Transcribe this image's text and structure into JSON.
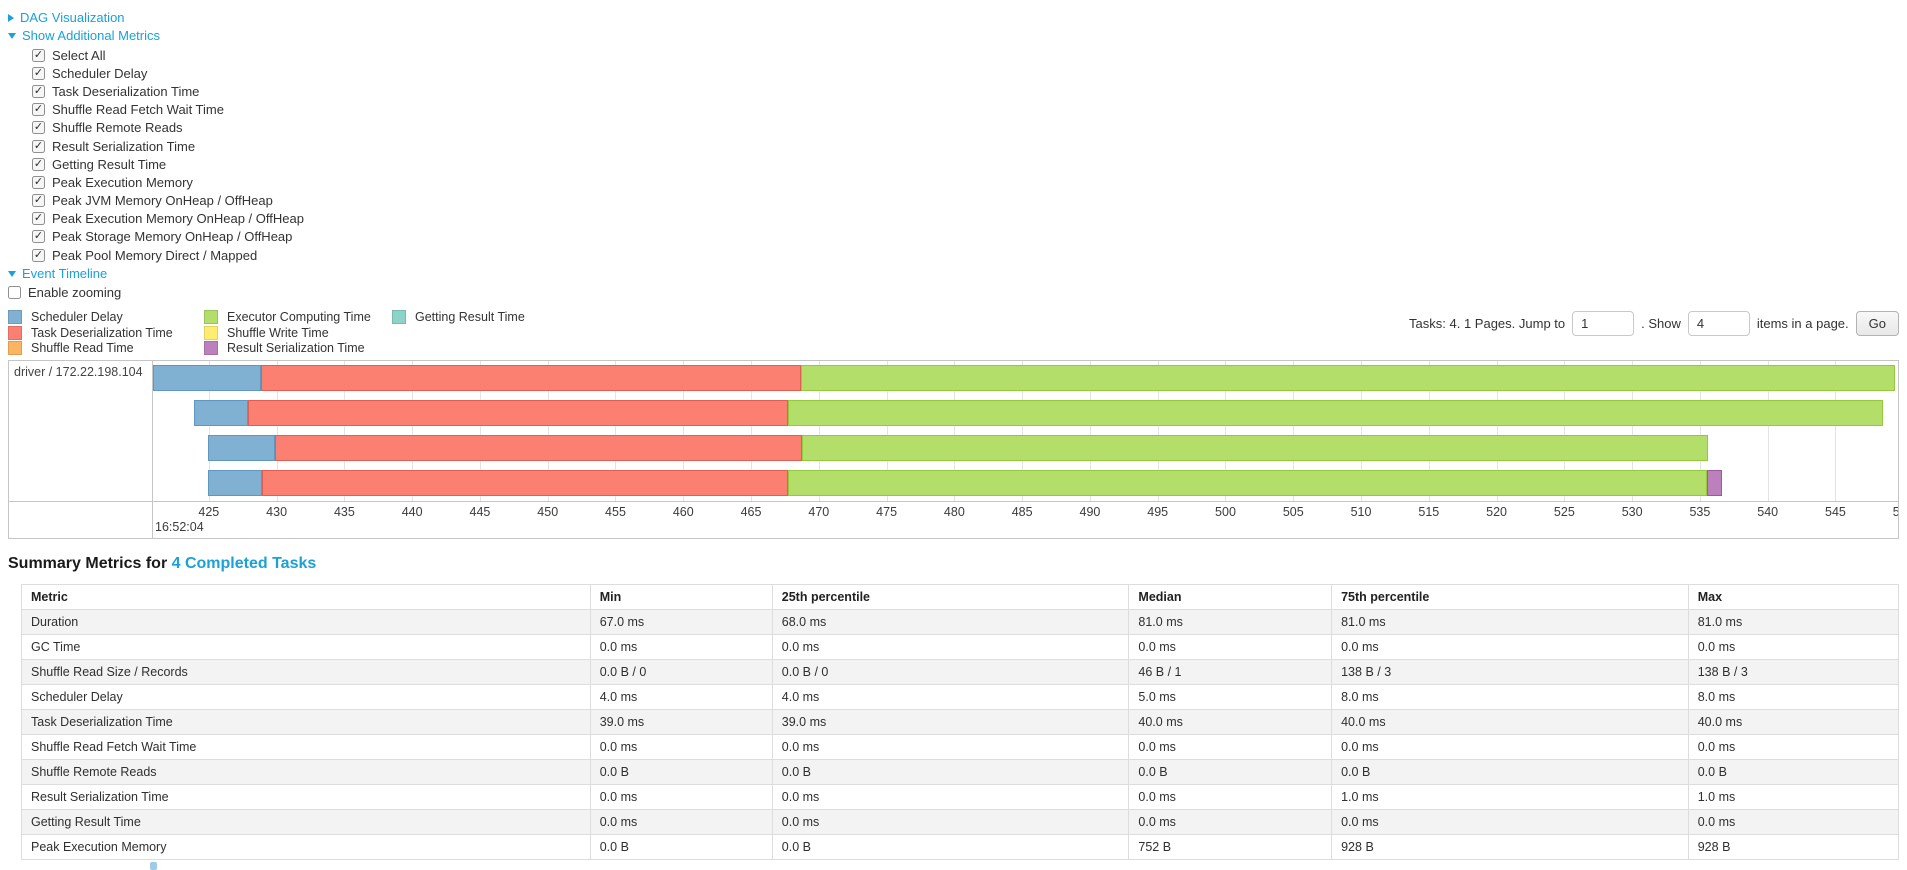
{
  "toggles": {
    "dag_label": "DAG Visualization",
    "metrics_label": "Show Additional Metrics",
    "timeline_label": "Event Timeline"
  },
  "additional_metrics": [
    "Select All",
    "Scheduler Delay",
    "Task Deserialization Time",
    "Shuffle Read Fetch Wait Time",
    "Shuffle Remote Reads",
    "Result Serialization Time",
    "Getting Result Time",
    "Peak Execution Memory",
    "Peak JVM Memory OnHeap / OffHeap",
    "Peak Execution Memory OnHeap / OffHeap",
    "Peak Storage Memory OnHeap / OffHeap",
    "Peak Pool Memory Direct / Mapped"
  ],
  "enable_zooming_label": "Enable zooming",
  "legend": {
    "columns": [
      [
        {
          "label": "Scheduler Delay",
          "color": "#80B1D3"
        },
        {
          "label": "Task Deserialization Time",
          "color": "#FB8072"
        },
        {
          "label": "Shuffle Read Time",
          "color": "#FDB462"
        }
      ],
      [
        {
          "label": "Executor Computing Time",
          "color": "#B3DE69"
        },
        {
          "label": "Shuffle Write Time",
          "color": "#FFED6F"
        },
        {
          "label": "Result Serialization Time",
          "color": "#BC80BD"
        }
      ],
      [
        {
          "label": "Getting Result Time",
          "color": "#8DD3C7"
        }
      ]
    ]
  },
  "pagination": {
    "info": "Tasks: 4. 1 Pages. Jump to",
    "jump_value": "1",
    "show_prefix": ". Show",
    "show_value": "4",
    "show_suffix": "items in a page.",
    "go_label": "Go"
  },
  "chart_data": {
    "type": "timeline",
    "group_label": "driver / 172.22.198.104",
    "x_axis": {
      "tick_start": 425,
      "tick_step": 5,
      "tick_count": 26,
      "first_tick_pct": 3.2,
      "step_pct": 3.884,
      "time_label": "16:52:04",
      "unit": "seconds"
    },
    "segment_colors": {
      "scheduler_delay": {
        "fill": "#80B1D3",
        "border": "#5E97C0"
      },
      "task_deserialization": {
        "fill": "#FB8072",
        "border": "#E05F52"
      },
      "shuffle_read": {
        "fill": "#FDB462",
        "border": "#E09A40"
      },
      "executor_computing": {
        "fill": "#B3DE69",
        "border": "#94C93D"
      },
      "shuffle_write": {
        "fill": "#FFED6F",
        "border": "#E0CC4E"
      },
      "result_serialization": {
        "fill": "#BC80BD",
        "border": "#9C5A9E"
      },
      "getting_result": {
        "fill": "#8DD3C7",
        "border": "#6BBAAC"
      }
    },
    "tasks": [
      {
        "segments": [
          {
            "metric": "scheduler_delay",
            "left_pct": 0.0,
            "width_pct": 6.17
          },
          {
            "metric": "task_deserialization",
            "left_pct": 6.17,
            "width_pct": 30.97
          },
          {
            "metric": "executor_computing",
            "left_pct": 37.14,
            "width_pct": 62.69
          }
        ]
      },
      {
        "segments": [
          {
            "metric": "scheduler_delay",
            "left_pct": 2.34,
            "width_pct": 3.09
          },
          {
            "metric": "task_deserialization",
            "left_pct": 5.43,
            "width_pct": 30.97
          },
          {
            "metric": "executor_computing",
            "left_pct": 36.4,
            "width_pct": 62.74
          }
        ]
      },
      {
        "segments": [
          {
            "metric": "scheduler_delay",
            "left_pct": 3.14,
            "width_pct": 3.83
          },
          {
            "metric": "task_deserialization",
            "left_pct": 6.97,
            "width_pct": 30.23
          },
          {
            "metric": "executor_computing",
            "left_pct": 37.2,
            "width_pct": 51.94
          }
        ]
      },
      {
        "segments": [
          {
            "metric": "scheduler_delay",
            "left_pct": 3.14,
            "width_pct": 3.09
          },
          {
            "metric": "task_deserialization",
            "left_pct": 6.23,
            "width_pct": 30.17
          },
          {
            "metric": "executor_computing",
            "left_pct": 36.4,
            "width_pct": 52.63
          },
          {
            "metric": "result_serialization",
            "left_pct": 89.03,
            "width_pct": 0.86
          }
        ]
      }
    ]
  },
  "summary": {
    "title_prefix": "Summary Metrics for",
    "title_link": "4 Completed Tasks",
    "headers": [
      "Metric",
      "Min",
      "25th percentile",
      "Median",
      "75th percentile",
      "Max"
    ],
    "rows": [
      [
        "Duration",
        "67.0 ms",
        "68.0 ms",
        "81.0 ms",
        "81.0 ms",
        "81.0 ms"
      ],
      [
        "GC Time",
        "0.0 ms",
        "0.0 ms",
        "0.0 ms",
        "0.0 ms",
        "0.0 ms"
      ],
      [
        "Shuffle Read Size / Records",
        "0.0 B / 0",
        "0.0 B / 0",
        "46 B / 1",
        "138 B / 3",
        "138 B / 3"
      ],
      [
        "Scheduler Delay",
        "4.0 ms",
        "4.0 ms",
        "5.0 ms",
        "8.0 ms",
        "8.0 ms"
      ],
      [
        "Task Deserialization Time",
        "39.0 ms",
        "39.0 ms",
        "40.0 ms",
        "40.0 ms",
        "40.0 ms"
      ],
      [
        "Shuffle Read Fetch Wait Time",
        "0.0 ms",
        "0.0 ms",
        "0.0 ms",
        "0.0 ms",
        "0.0 ms"
      ],
      [
        "Shuffle Remote Reads",
        "0.0 B",
        "0.0 B",
        "0.0 B",
        "0.0 B",
        "0.0 B"
      ],
      [
        "Result Serialization Time",
        "0.0 ms",
        "0.0 ms",
        "0.0 ms",
        "1.0 ms",
        "1.0 ms"
      ],
      [
        "Getting Result Time",
        "0.0 ms",
        "0.0 ms",
        "0.0 ms",
        "0.0 ms",
        "0.0 ms"
      ],
      [
        "Peak Execution Memory",
        "0.0 B",
        "0.0 B",
        "752 B",
        "928 B",
        "928 B"
      ]
    ]
  }
}
